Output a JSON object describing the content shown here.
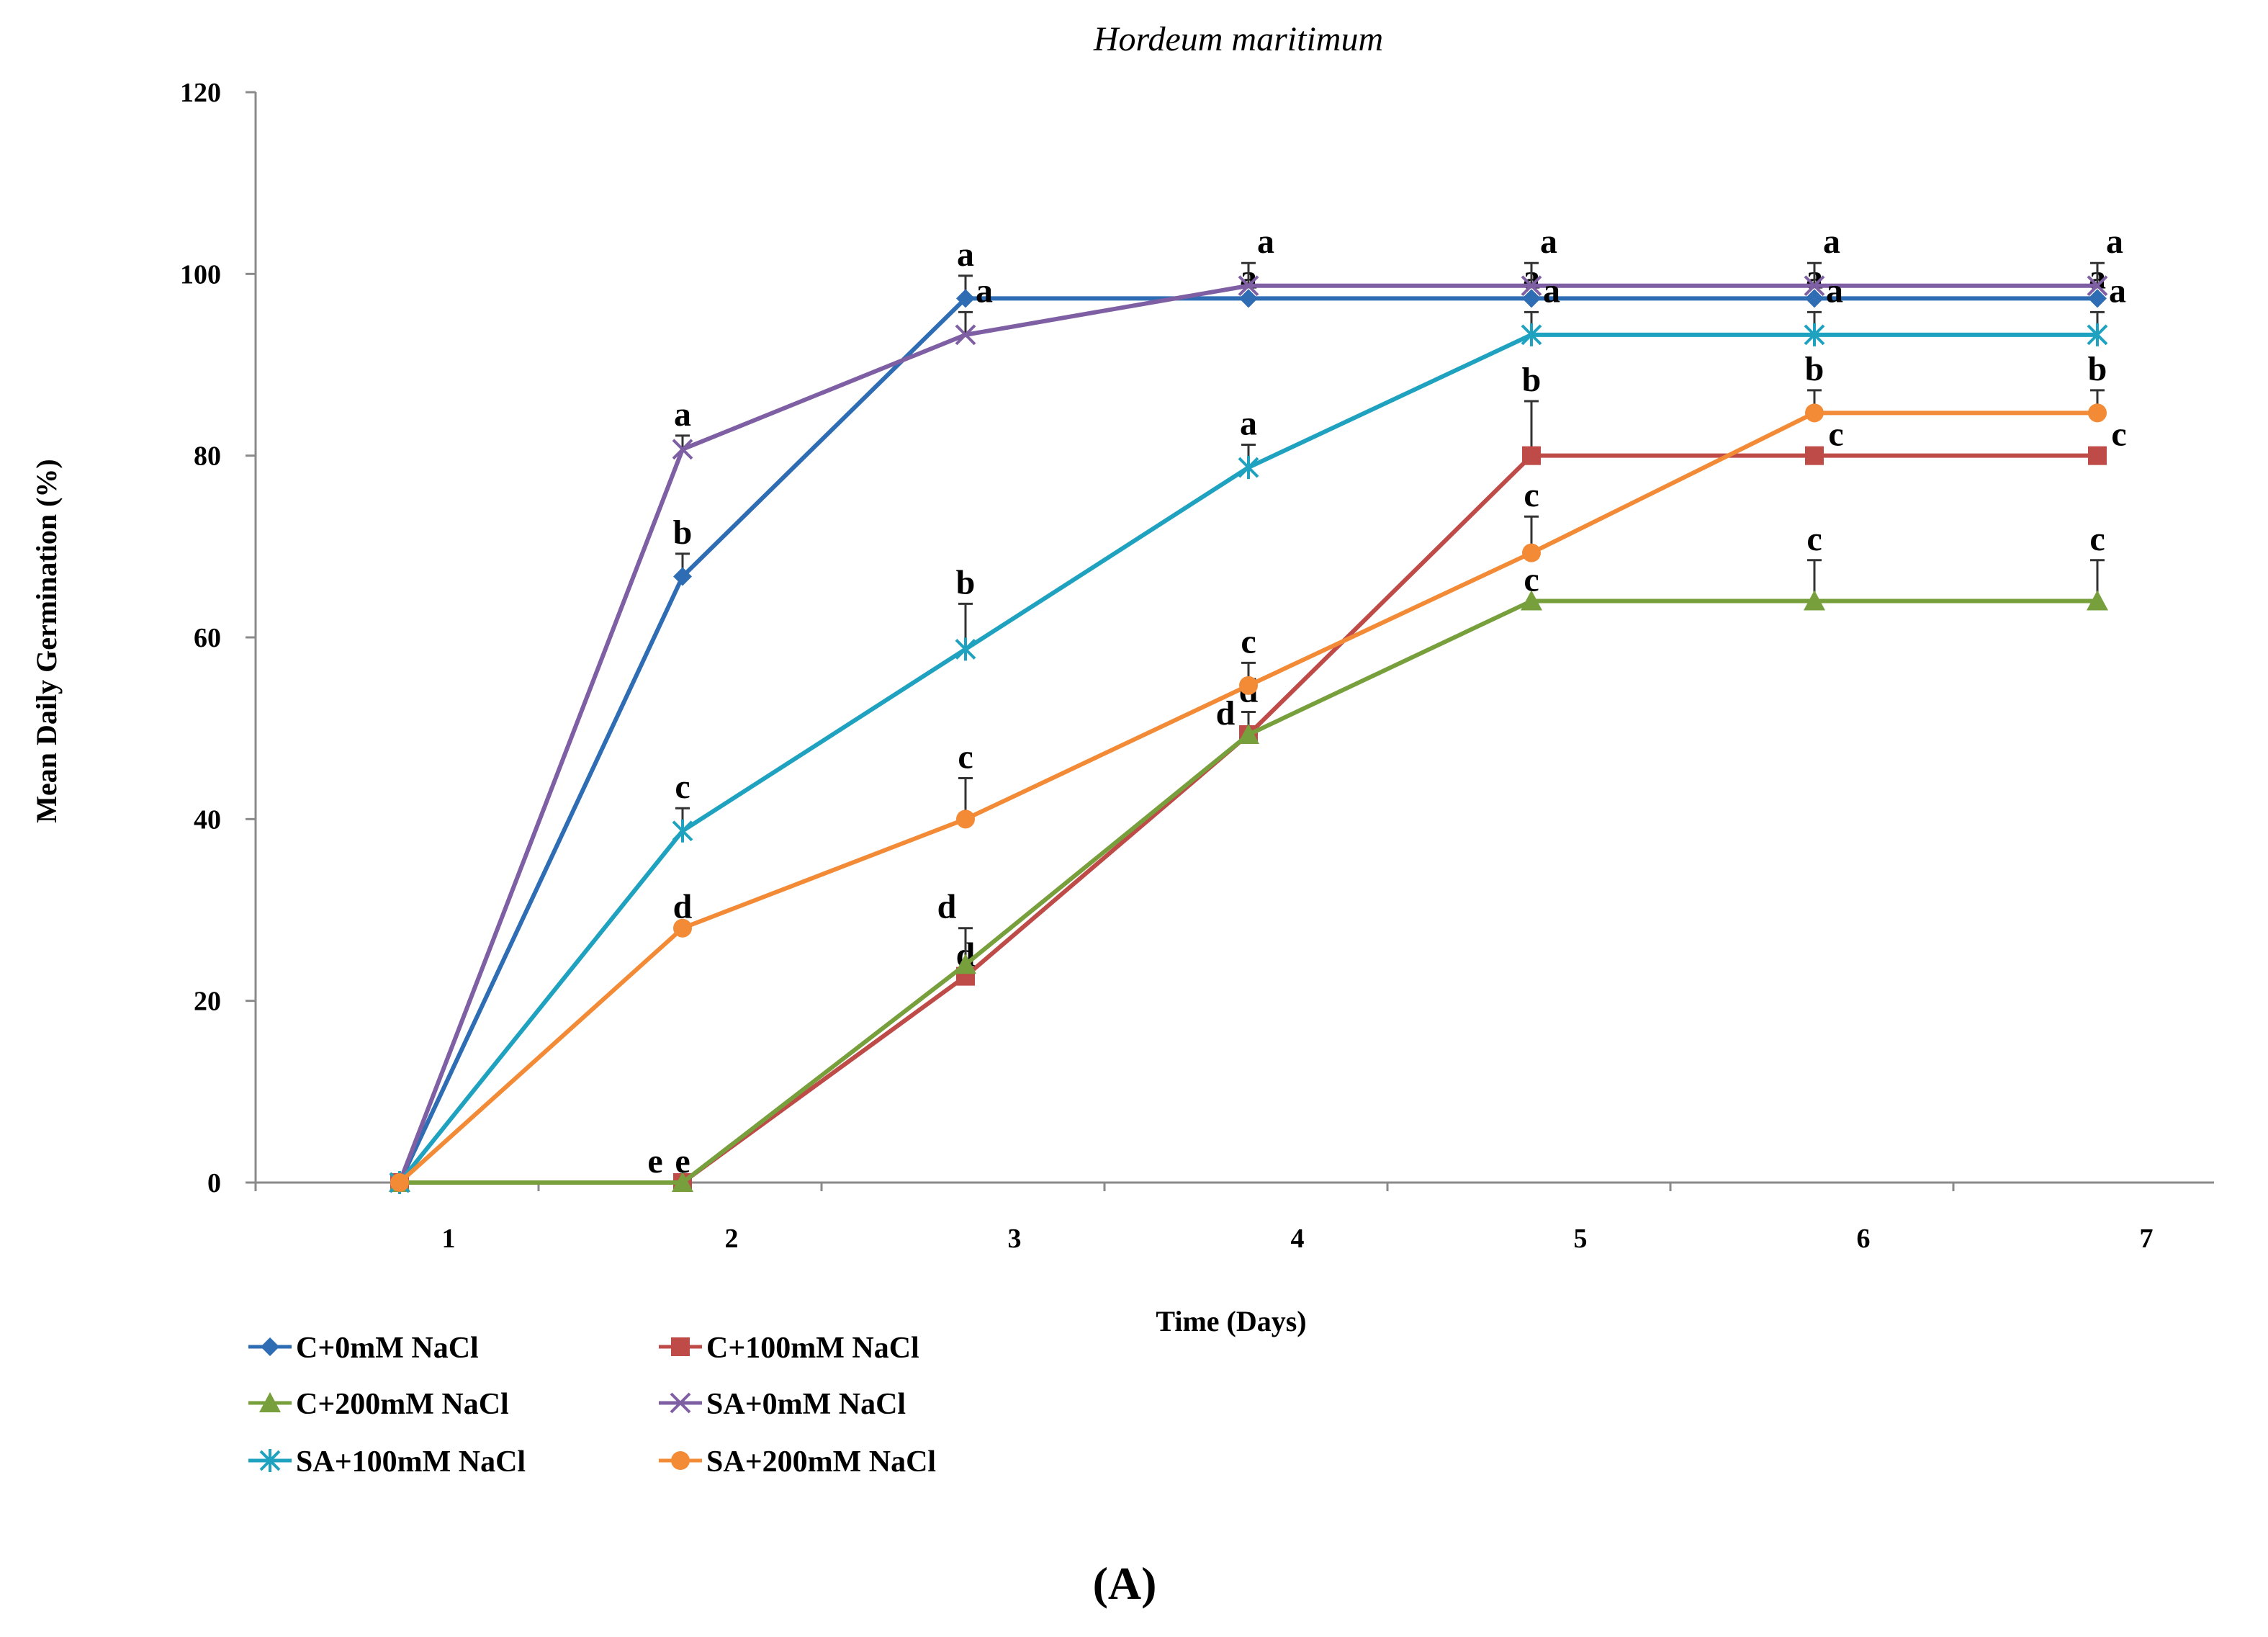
{
  "chart_data": {
    "type": "line",
    "title": "Hordeum maritimum",
    "xlabel": "Time (Days)",
    "ylabel": "Mean Daily Germination (%)",
    "x": [
      1,
      2,
      3,
      4,
      5,
      6,
      7
    ],
    "categories": [
      "1",
      "2",
      "3",
      "4",
      "5",
      "6",
      "7"
    ],
    "ylim": [
      0,
      120
    ],
    "yticks": [
      0,
      20,
      40,
      60,
      80,
      100,
      120
    ],
    "grid": false,
    "legend_position": "bottom-left",
    "panel_label": "(A)",
    "series": [
      {
        "name": "C+0mM NaCl",
        "color": "#2E6DB4",
        "marker": "diamond",
        "values": [
          0,
          66.7,
          97.3,
          97.3,
          97.3,
          97.3,
          97.3
        ],
        "errors": [
          0,
          2.5,
          2.5,
          0,
          0,
          0,
          0
        ],
        "letters": [
          "",
          "b",
          "a",
          "a",
          "a",
          "a",
          "a"
        ]
      },
      {
        "name": "C+100mM NaCl",
        "color": "#BE4B48",
        "marker": "square",
        "values": [
          0,
          0,
          22.7,
          49.3,
          80,
          80,
          80
        ],
        "errors": [
          0,
          0,
          0,
          0,
          6,
          0,
          0
        ],
        "letters": [
          "",
          "e",
          "d",
          "d",
          "b",
          "c",
          "c"
        ]
      },
      {
        "name": "C+200mM NaCl",
        "color": "#77A03C",
        "marker": "triangle",
        "values": [
          0,
          0,
          24,
          49.3,
          64,
          64,
          64
        ],
        "errors": [
          0,
          0,
          4,
          2.5,
          0,
          4.5,
          4.5
        ],
        "letters": [
          "",
          "e",
          "d",
          "d",
          "c",
          "c",
          "c"
        ]
      },
      {
        "name": "SA+0mM NaCl",
        "color": "#7F5FA3",
        "marker": "x",
        "values": [
          0,
          80.7,
          93.3,
          98.7,
          98.7,
          98.7,
          98.7
        ],
        "errors": [
          0,
          1.5,
          2.5,
          2.5,
          2.5,
          2.5,
          2.5
        ],
        "letters": [
          "",
          "a",
          "a",
          "a",
          "a",
          "a",
          "a"
        ]
      },
      {
        "name": "SA+100mM NaCl",
        "color": "#1EA2BF",
        "marker": "star",
        "values": [
          0,
          38.7,
          58.7,
          78.7,
          93.3,
          93.3,
          93.3
        ],
        "errors": [
          0,
          2.5,
          5,
          2.5,
          2.5,
          2.5,
          2.5
        ],
        "letters": [
          "",
          "c",
          "b",
          "a",
          "a",
          "a",
          "a"
        ]
      },
      {
        "name": "SA+200mM NaCl",
        "color": "#F28A36",
        "marker": "circle",
        "values": [
          0,
          28,
          40,
          54.7,
          69.3,
          84.7,
          84.7
        ],
        "errors": [
          0,
          0,
          4.5,
          2.5,
          4,
          2.5,
          2.5
        ],
        "letters": [
          "",
          "d",
          "c",
          "c",
          "c",
          "b",
          "b"
        ]
      }
    ]
  }
}
